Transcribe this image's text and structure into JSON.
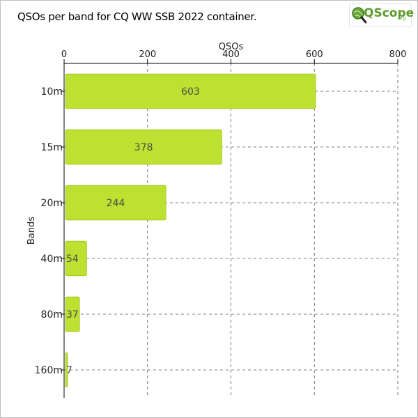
{
  "title": "QSOs per band for CQ WW SSB 2022 container.",
  "logo": {
    "name": "QScope",
    "suffix": ".org"
  },
  "colors": {
    "bar": "#bde130",
    "bar_stroke": "#9cc41e",
    "grid": "#555555",
    "axis": "#000000",
    "label": "#4a4a4a"
  },
  "chart_data": {
    "type": "bar",
    "orientation": "horizontal",
    "title": "QSOs per band for CQ WW SSB 2022 container.",
    "xlabel": "QSOs",
    "ylabel": "Bands",
    "xlim": [
      0,
      800
    ],
    "xticks": [
      0,
      200,
      400,
      600,
      800
    ],
    "xaxis_position": "top",
    "grid": true,
    "categories": [
      "10m",
      "15m",
      "20m",
      "40m",
      "80m",
      "160m"
    ],
    "values": [
      603,
      378,
      244,
      54,
      37,
      7
    ]
  }
}
